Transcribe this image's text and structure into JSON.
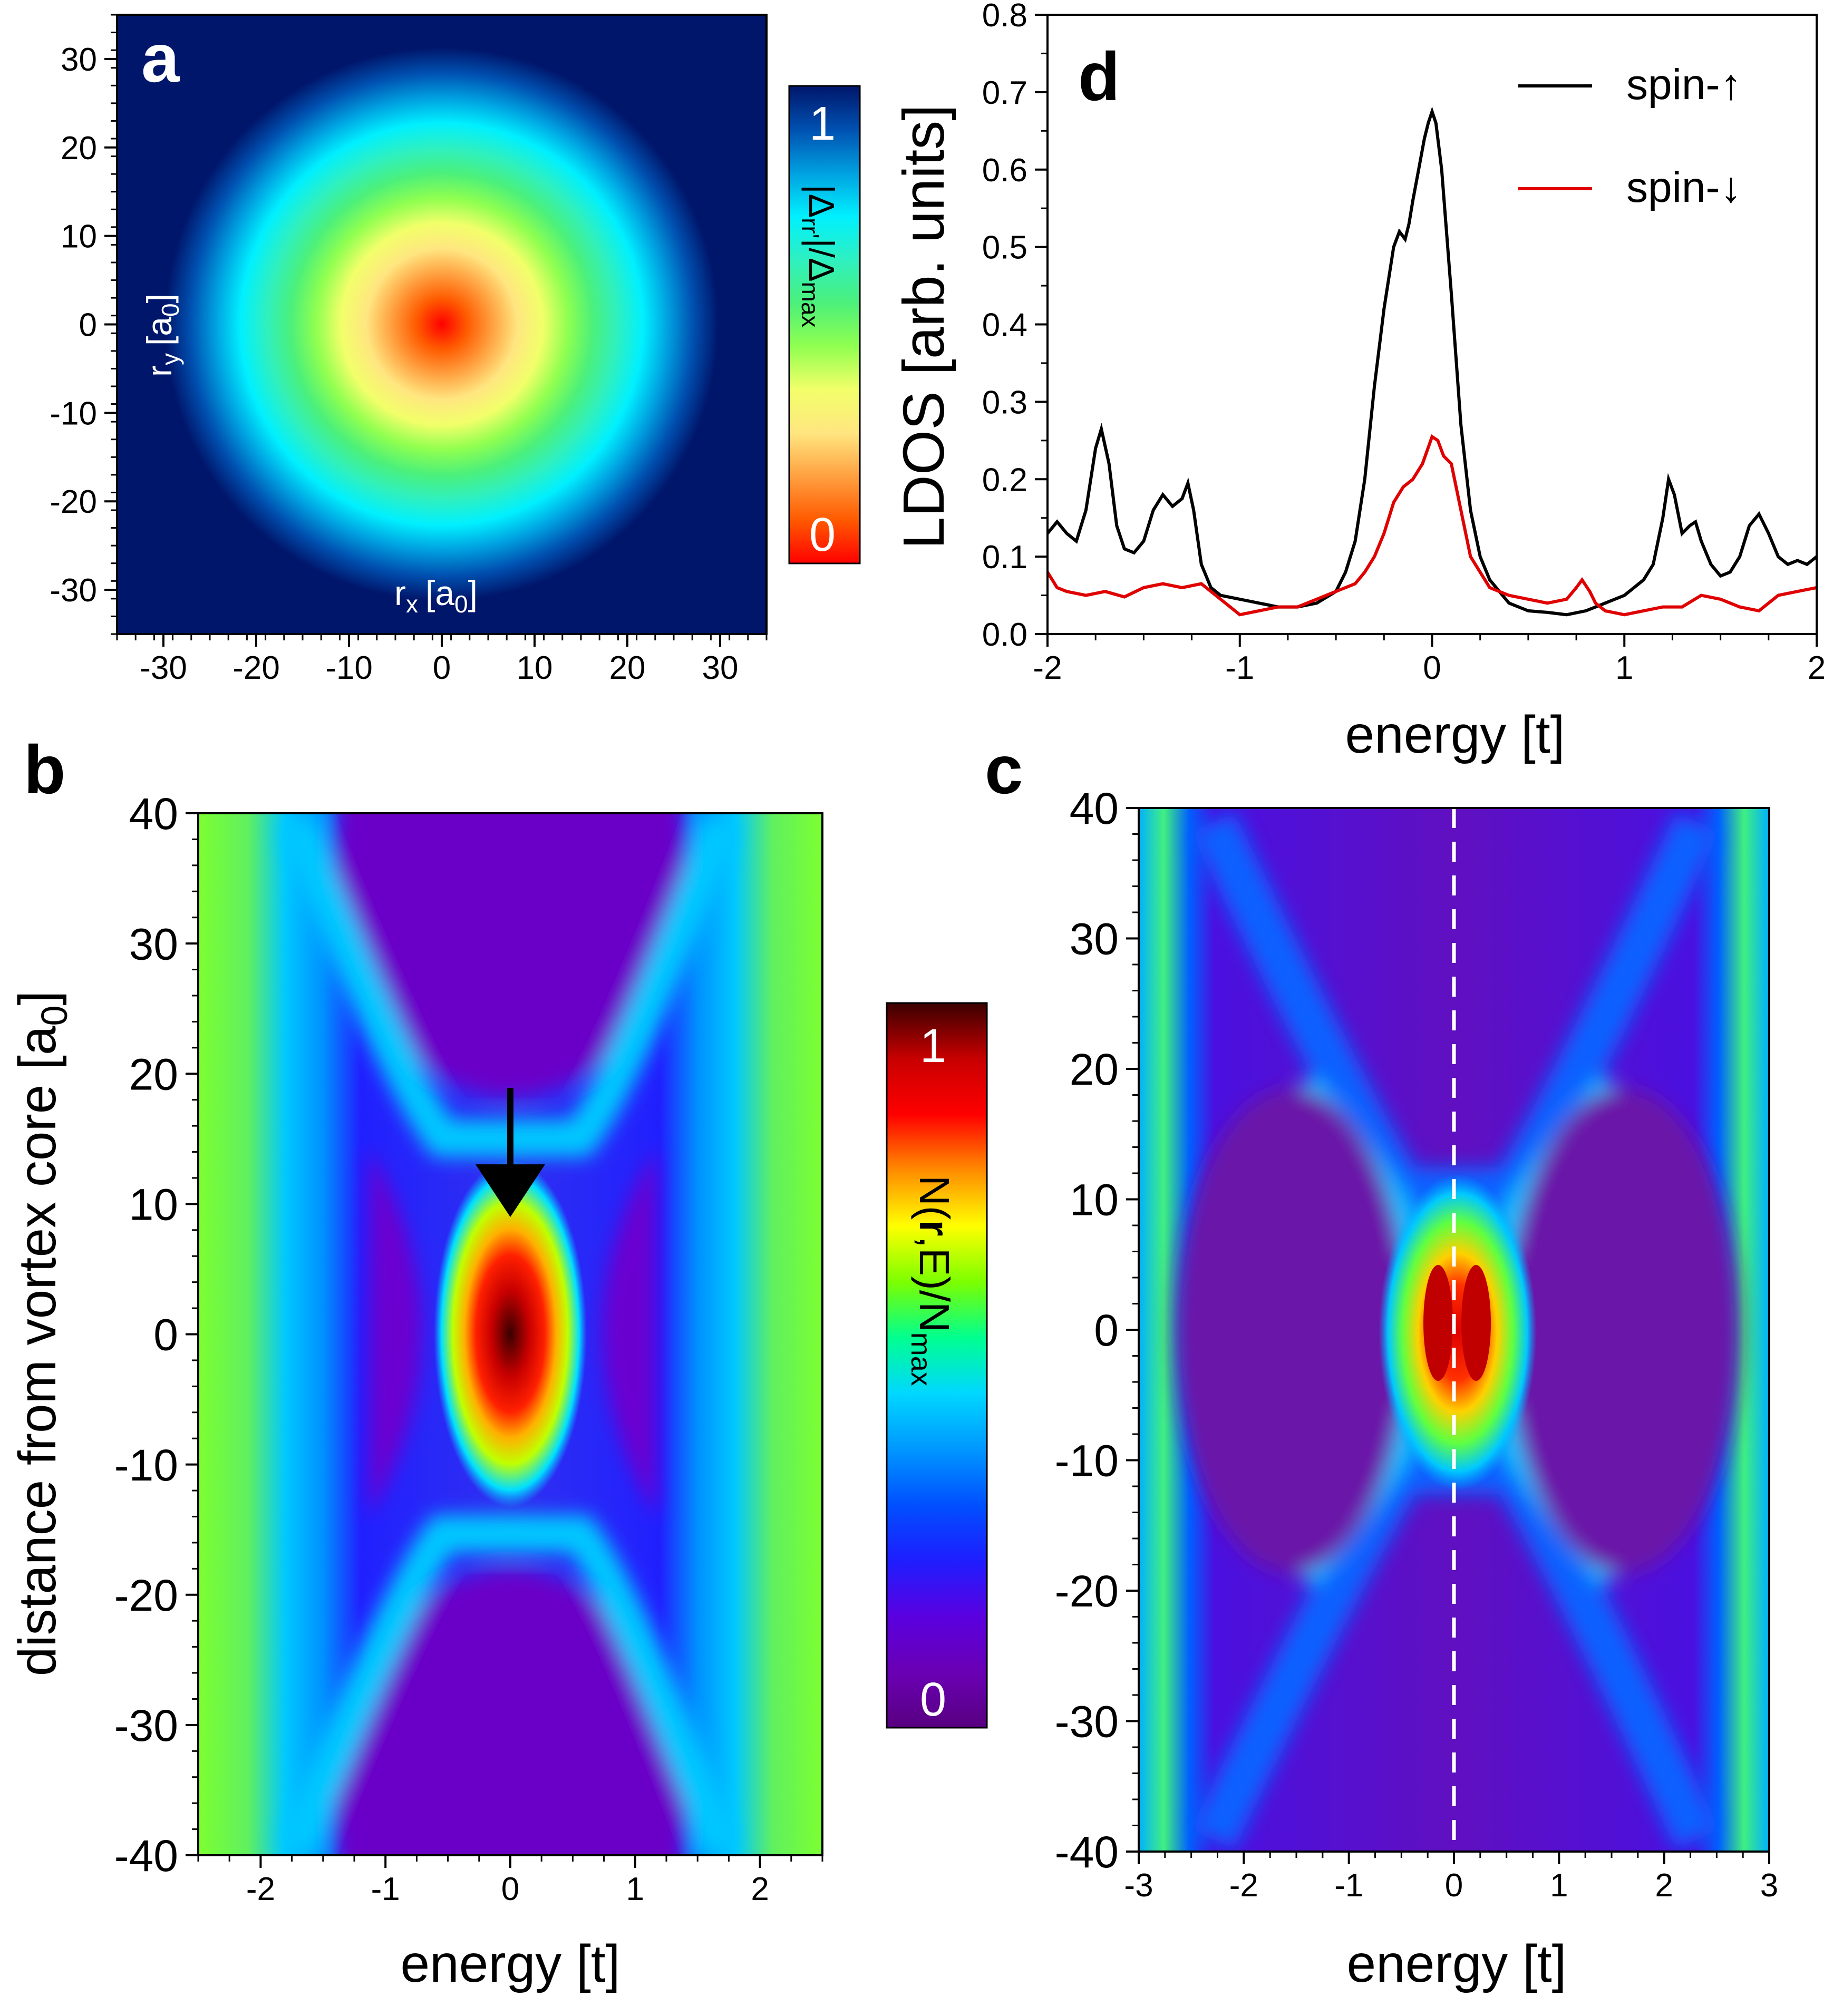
{
  "colors": {
    "gap_map": [
      "#ff0000",
      "#ff5a00",
      "#ffa040",
      "#ffe680",
      "#f2ff6a",
      "#90ff50",
      "#4cf07a",
      "#2ef0c0",
      "#00f0ff",
      "#00a0e0",
      "#0050b0",
      "#00166b"
    ],
    "ldos_map": [
      "#580080",
      "#6a00b4",
      "#5a00e0",
      "#1e1eff",
      "#0050ff",
      "#0098ff",
      "#00d8ff",
      "#00ff90",
      "#7cff00",
      "#ffff00",
      "#ff8c00",
      "#ff0000",
      "#c80000",
      "#3a0000"
    ],
    "spin_up": "#000000",
    "spin_down": "#e00000",
    "dashed_line": "#ffffff",
    "arrow": "#000000"
  },
  "chart_data": [
    {
      "panel": "a",
      "type": "heatmap",
      "title": "a",
      "xlabel": "r",
      "xlabel_sub": "x",
      "xlabel_unit": "[a",
      "xlabel_unit_sub": "0",
      "xlabel_close": "]",
      "ylabel": "r",
      "ylabel_sub": "y",
      "ylabel_unit": "[a",
      "ylabel_unit_sub": "0",
      "ylabel_close": "]",
      "xlim": [
        -35,
        35
      ],
      "ylim": [
        -35,
        35
      ],
      "xticks": [
        -30,
        -20,
        -10,
        0,
        10,
        20,
        30
      ],
      "yticks": [
        -30,
        -20,
        -10,
        0,
        10,
        20,
        30
      ],
      "description_values": {
        "center_value": 0,
        "ring_radius_full": 25
      },
      "colorbar": {
        "label": "|Δ",
        "label_sub": "rr'",
        "label_mid": "|/Δ",
        "label_sub2": "max",
        "max_label": "1",
        "min_label": "0"
      }
    },
    {
      "panel": "b",
      "type": "heatmap",
      "title": "b",
      "xlabel": "energy [t]",
      "ylabel": "distance from vortex core [a",
      "ylabel_sub": "0",
      "ylabel_close": "]",
      "xlim": [
        -2.5,
        2.5
      ],
      "ylim": [
        -40,
        40
      ],
      "xticks": [
        -2,
        -1,
        0,
        1,
        2
      ],
      "yticks": [
        -40,
        -30,
        -20,
        -10,
        0,
        10,
        20,
        30,
        40
      ],
      "arrow_target": {
        "energy": 0,
        "distance": 9
      },
      "colorbar": {
        "label": "N(",
        "label_bold": "r",
        "label_end": ",E)/N",
        "label_sub": "max",
        "max_label": "1",
        "min_label": "0"
      }
    },
    {
      "panel": "c",
      "type": "heatmap",
      "title": "c",
      "xlabel": "energy [t]",
      "xlim": [
        -3,
        3
      ],
      "ylim": [
        -40,
        40
      ],
      "xticks": [
        -3,
        -2,
        -1,
        0,
        1,
        2,
        3
      ],
      "yticks": [
        -40,
        -30,
        -20,
        -10,
        0,
        10,
        20,
        30,
        40
      ],
      "dashed_line_energy": 0
    },
    {
      "panel": "d",
      "type": "line",
      "title": "d",
      "xlabel": "energy [t]",
      "ylabel": "LDOS [arb. units]",
      "xlim": [
        -2,
        2
      ],
      "ylim": [
        0,
        0.8
      ],
      "xticks": [
        -2,
        -1,
        0,
        1,
        2
      ],
      "yticks": [
        0.0,
        0.1,
        0.2,
        0.3,
        0.4,
        0.5,
        0.6,
        0.7,
        0.8
      ],
      "ytick_labels": [
        "0.0",
        "0.1",
        "0.2",
        "0.3",
        "0.4",
        "0.5",
        "0.6",
        "0.7",
        "0.8"
      ],
      "legend": "top-right",
      "series": [
        {
          "name": "spin-↑",
          "x": [
            -2.0,
            -1.95,
            -1.9,
            -1.85,
            -1.8,
            -1.75,
            -1.72,
            -1.68,
            -1.64,
            -1.6,
            -1.55,
            -1.5,
            -1.45,
            -1.4,
            -1.35,
            -1.3,
            -1.27,
            -1.24,
            -1.2,
            -1.15,
            -1.1,
            -1.0,
            -0.9,
            -0.8,
            -0.7,
            -0.6,
            -0.5,
            -0.45,
            -0.4,
            -0.35,
            -0.3,
            -0.25,
            -0.2,
            -0.17,
            -0.14,
            -0.12,
            -0.1,
            -0.07,
            -0.04,
            -0.02,
            0.0,
            0.02,
            0.05,
            0.1,
            0.15,
            0.2,
            0.25,
            0.3,
            0.4,
            0.5,
            0.6,
            0.7,
            0.8,
            0.9,
            1.0,
            1.1,
            1.15,
            1.2,
            1.23,
            1.26,
            1.3,
            1.34,
            1.37,
            1.4,
            1.45,
            1.5,
            1.55,
            1.6,
            1.65,
            1.7,
            1.75,
            1.8,
            1.85,
            1.9,
            1.95,
            2.0
          ],
          "y": [
            0.13,
            0.145,
            0.13,
            0.12,
            0.16,
            0.24,
            0.265,
            0.22,
            0.14,
            0.11,
            0.105,
            0.12,
            0.16,
            0.18,
            0.165,
            0.175,
            0.195,
            0.16,
            0.09,
            0.06,
            0.05,
            0.045,
            0.04,
            0.035,
            0.035,
            0.04,
            0.055,
            0.08,
            0.12,
            0.2,
            0.32,
            0.42,
            0.5,
            0.52,
            0.51,
            0.53,
            0.56,
            0.6,
            0.64,
            0.66,
            0.675,
            0.66,
            0.6,
            0.44,
            0.27,
            0.16,
            0.1,
            0.07,
            0.04,
            0.03,
            0.028,
            0.025,
            0.03,
            0.04,
            0.05,
            0.07,
            0.09,
            0.15,
            0.2,
            0.18,
            0.13,
            0.14,
            0.145,
            0.12,
            0.09,
            0.075,
            0.08,
            0.1,
            0.14,
            0.155,
            0.13,
            0.1,
            0.09,
            0.095,
            0.09,
            0.1
          ]
        },
        {
          "name": "spin-↓",
          "x": [
            -2.0,
            -1.95,
            -1.9,
            -1.8,
            -1.7,
            -1.6,
            -1.5,
            -1.4,
            -1.3,
            -1.2,
            -1.1,
            -1.0,
            -0.9,
            -0.8,
            -0.7,
            -0.6,
            -0.5,
            -0.4,
            -0.35,
            -0.3,
            -0.25,
            -0.2,
            -0.15,
            -0.1,
            -0.05,
            0.0,
            0.03,
            0.06,
            0.1,
            0.15,
            0.2,
            0.3,
            0.4,
            0.5,
            0.6,
            0.7,
            0.75,
            0.78,
            0.82,
            0.85,
            0.9,
            1.0,
            1.1,
            1.2,
            1.3,
            1.4,
            1.5,
            1.6,
            1.7,
            1.8,
            1.9,
            2.0
          ],
          "y": [
            0.08,
            0.06,
            0.055,
            0.05,
            0.055,
            0.048,
            0.06,
            0.065,
            0.06,
            0.065,
            0.045,
            0.025,
            0.03,
            0.035,
            0.035,
            0.045,
            0.055,
            0.065,
            0.08,
            0.1,
            0.13,
            0.17,
            0.19,
            0.2,
            0.22,
            0.255,
            0.25,
            0.23,
            0.22,
            0.16,
            0.1,
            0.06,
            0.05,
            0.045,
            0.04,
            0.045,
            0.06,
            0.07,
            0.055,
            0.04,
            0.03,
            0.025,
            0.03,
            0.035,
            0.035,
            0.05,
            0.045,
            0.035,
            0.03,
            0.05,
            0.055,
            0.06
          ]
        }
      ]
    }
  ]
}
